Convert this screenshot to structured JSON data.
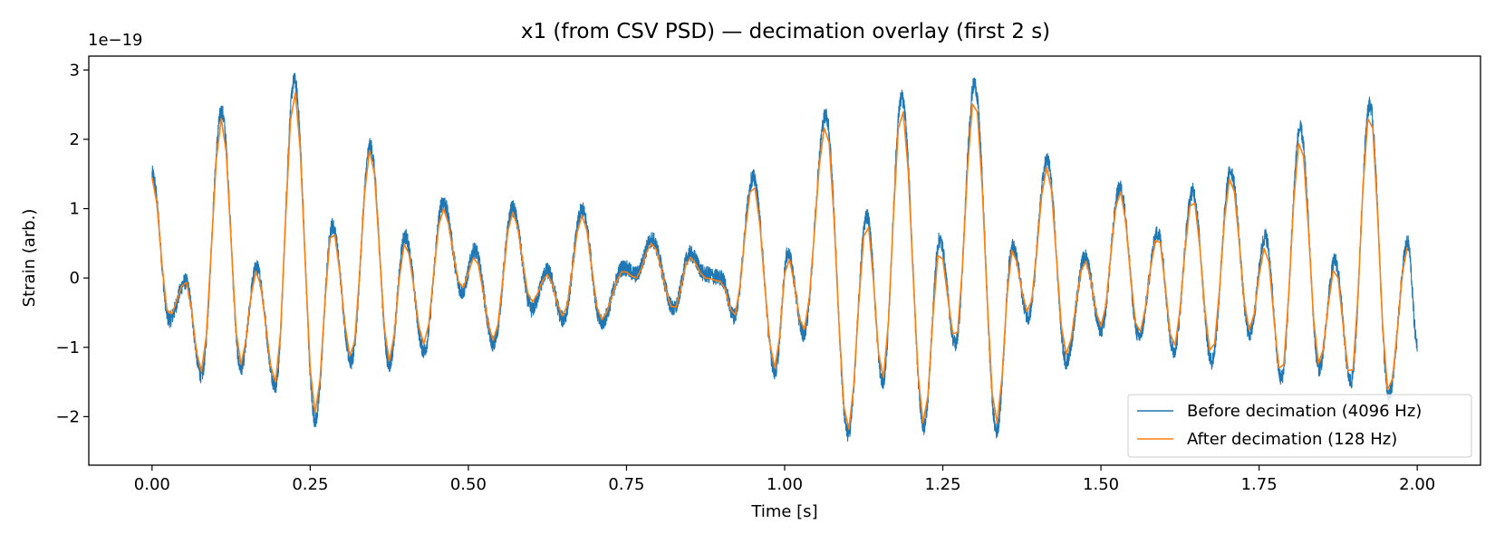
{
  "chart_data": {
    "type": "line",
    "title": "x1 (from CSV PSD) — decimation overlay (first 2 s)",
    "xlabel": "Time [s]",
    "ylabel": "Strain (arb.)",
    "y_offset_label": "1e−19",
    "xlim": [
      -0.1,
      2.1
    ],
    "ylim": [
      -2.7,
      3.2
    ],
    "x_ticks": [
      0.0,
      0.25,
      0.5,
      0.75,
      1.0,
      1.25,
      1.5,
      1.75,
      2.0
    ],
    "x_tick_labels": [
      "0.00",
      "0.25",
      "0.50",
      "0.75",
      "1.00",
      "1.25",
      "1.50",
      "1.75",
      "2.00"
    ],
    "y_ticks": [
      -2,
      -1,
      0,
      1,
      2,
      3
    ],
    "y_tick_labels": [
      "−2",
      "−1",
      "0",
      "1",
      "2",
      "3"
    ],
    "legend_position": "lower-right",
    "series": [
      {
        "name": "Before decimation (4096 Hz)",
        "color": "#1f77b4",
        "sample_rate_hz": 4096,
        "noise_amplitude": 0.12,
        "envelope": {
          "x": [
            0.0,
            0.027,
            0.053,
            0.078,
            0.11,
            0.14,
            0.165,
            0.195,
            0.225,
            0.258,
            0.285,
            0.315,
            0.345,
            0.375,
            0.4,
            0.43,
            0.46,
            0.49,
            0.51,
            0.54,
            0.57,
            0.6,
            0.625,
            0.65,
            0.68,
            0.71,
            0.745,
            0.765,
            0.79,
            0.825,
            0.85,
            0.875,
            0.9,
            0.92,
            0.95,
            0.985,
            1.005,
            1.03,
            1.065,
            1.1,
            1.13,
            1.155,
            1.185,
            1.22,
            1.245,
            1.27,
            1.3,
            1.335,
            1.36,
            1.385,
            1.415,
            1.445,
            1.475,
            1.5,
            1.53,
            1.56,
            1.59,
            1.615,
            1.645,
            1.675,
            1.705,
            1.735,
            1.76,
            1.785,
            1.815,
            1.845,
            1.87,
            1.895,
            1.925,
            1.955,
            1.985,
            2.0
          ],
          "y": [
            1.5,
            -0.6,
            -0.05,
            -1.4,
            2.4,
            -1.3,
            0.15,
            -1.55,
            2.85,
            -2.05,
            0.75,
            -1.2,
            1.9,
            -1.25,
            0.6,
            -1.05,
            1.1,
            -0.2,
            0.4,
            -0.95,
            1.0,
            -0.45,
            0.1,
            -0.6,
            0.98,
            -0.65,
            0.15,
            0.05,
            0.55,
            -0.45,
            0.35,
            0.05,
            0.0,
            -0.55,
            1.45,
            -1.35,
            0.35,
            -0.8,
            2.35,
            -2.25,
            0.9,
            -1.5,
            2.6,
            -2.15,
            0.55,
            -0.95,
            2.8,
            -2.2,
            0.45,
            -0.55,
            1.7,
            -1.2,
            0.3,
            -0.75,
            1.3,
            -0.85,
            0.65,
            -1.05,
            1.25,
            -1.2,
            1.55,
            -0.8,
            0.6,
            -1.45,
            2.15,
            -1.3,
            0.25,
            -1.5,
            2.5,
            -1.7,
            0.5,
            -0.95
          ]
        }
      },
      {
        "name": "After decimation (128 Hz)",
        "color": "#ff7f0e",
        "sample_rate_hz": 128,
        "x": [
          0.0,
          0.027,
          0.053,
          0.078,
          0.11,
          0.14,
          0.165,
          0.195,
          0.225,
          0.258,
          0.285,
          0.315,
          0.345,
          0.375,
          0.4,
          0.43,
          0.46,
          0.49,
          0.51,
          0.54,
          0.57,
          0.6,
          0.625,
          0.65,
          0.68,
          0.71,
          0.745,
          0.765,
          0.79,
          0.825,
          0.85,
          0.875,
          0.9,
          0.92,
          0.95,
          0.985,
          1.005,
          1.03,
          1.065,
          1.1,
          1.13,
          1.155,
          1.185,
          1.22,
          1.245,
          1.27,
          1.3,
          1.335,
          1.36,
          1.385,
          1.415,
          1.445,
          1.475,
          1.5,
          1.53,
          1.56,
          1.59,
          1.615,
          1.645,
          1.675,
          1.705,
          1.735,
          1.76,
          1.785,
          1.815,
          1.845,
          1.87,
          1.895,
          1.925,
          1.955,
          1.985
        ],
        "y": [
          1.45,
          -0.55,
          -0.05,
          -1.35,
          2.3,
          -1.25,
          0.1,
          -1.5,
          2.7,
          -1.95,
          0.7,
          -1.15,
          1.85,
          -1.2,
          0.5,
          -0.95,
          1.0,
          -0.15,
          0.3,
          -0.9,
          0.95,
          -0.35,
          0.05,
          -0.55,
          0.9,
          -0.6,
          0.1,
          0.0,
          0.5,
          -0.45,
          0.3,
          0.0,
          -0.05,
          -0.55,
          1.35,
          -1.3,
          0.3,
          -0.75,
          2.2,
          -2.2,
          0.8,
          -1.45,
          2.45,
          -2.1,
          0.4,
          -0.9,
          2.6,
          -2.1,
          0.4,
          -0.5,
          1.6,
          -1.1,
          0.25,
          -0.7,
          1.25,
          -0.8,
          0.6,
          -1.0,
          1.15,
          -1.1,
          1.45,
          -0.75,
          0.45,
          -1.4,
          2.0,
          -1.25,
          0.15,
          -1.45,
          2.4,
          -1.65,
          0.45
        ]
      }
    ]
  }
}
